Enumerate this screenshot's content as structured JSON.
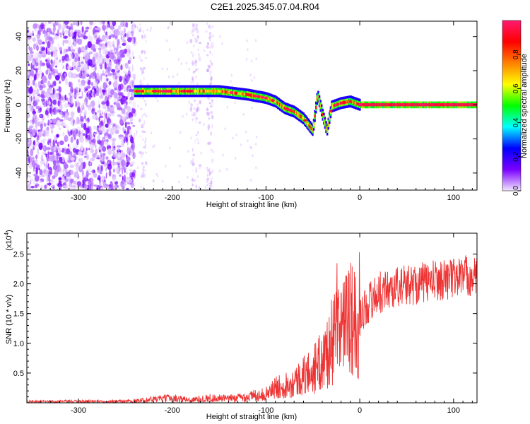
{
  "title": "C2E1.2025.345.07.04.R04",
  "chart_data": [
    {
      "type": "heatmap",
      "xlabel": "Height of straight line (km)",
      "ylabel": "Frequency (Hz)",
      "xlim": [
        -355,
        125
      ],
      "ylim": [
        -50,
        49
      ],
      "xticks": [
        -300,
        -200,
        -100,
        0,
        100
      ],
      "yticks": [
        -40,
        -20,
        0,
        20,
        40
      ],
      "noise_region_x": [
        -355,
        -240
      ],
      "sparse_stripes_x": [
        [
          -235,
          -228
        ],
        [
          -180,
          -170
        ],
        [
          -163,
          -157
        ]
      ],
      "ridge": {
        "x": [
          -240,
          -200,
          -150,
          -120,
          -100,
          -90,
          -80,
          -70,
          -60,
          -50,
          -45,
          -40,
          -35,
          -30,
          -20,
          -10,
          0,
          20,
          50,
          100,
          125
        ],
        "freq": [
          8,
          8,
          8,
          6,
          4,
          2,
          -2,
          -4,
          -8,
          -15,
          6,
          -5,
          -15,
          -1,
          1,
          2,
          0,
          0,
          0,
          0,
          0
        ]
      },
      "colorbar": {
        "label": "Normalized spectral amplitude",
        "range": [
          0,
          1
        ],
        "ticks": [
          "0.0",
          "0.2",
          "0.4",
          "0.6",
          "0.8"
        ],
        "tick_values": [
          0,
          0.2,
          0.4,
          0.6,
          0.8
        ],
        "colors": [
          "#f2e6ff",
          "#7a00ff",
          "#0000ff",
          "#00ffff",
          "#00ff00",
          "#ffff00",
          "#ff8000",
          "#ff0000",
          "#ff1a6e"
        ]
      }
    },
    {
      "type": "line",
      "xlabel": "Height of straight line (km)",
      "ylabel": "SNR (10 * v/v)",
      "multiplier_label": "(x10",
      "multiplier_exp": "4",
      "multiplier_close": ")",
      "xlim": [
        -355,
        125
      ],
      "ylim": [
        0,
        2.85
      ],
      "xticks": [
        -300,
        -200,
        -100,
        0,
        100
      ],
      "yticks": [
        0.5,
        1.0,
        1.5,
        2.0,
        2.5
      ],
      "ytick_labels": [
        "0.5",
        "1.0",
        "1.5",
        "2.0",
        "2.5"
      ],
      "color": "#ee3333",
      "envelope": {
        "x": [
          -355,
          -240,
          -220,
          -200,
          -180,
          -160,
          -140,
          -120,
          -100,
          -90,
          -80,
          -70,
          -60,
          -50,
          -40,
          -30,
          -25,
          -20,
          -10,
          -5,
          0,
          10,
          20,
          30,
          40,
          60,
          80,
          100,
          110,
          125
        ],
        "y": [
          0.02,
          0.03,
          0.06,
          0.08,
          0.05,
          0.08,
          0.07,
          0.1,
          0.15,
          0.25,
          0.3,
          0.35,
          0.45,
          0.55,
          0.7,
          1.0,
          1.2,
          1.3,
          1.35,
          1.4,
          1.45,
          1.7,
          1.85,
          1.9,
          1.95,
          2.0,
          2.05,
          2.1,
          2.15,
          2.1
        ]
      }
    }
  ]
}
